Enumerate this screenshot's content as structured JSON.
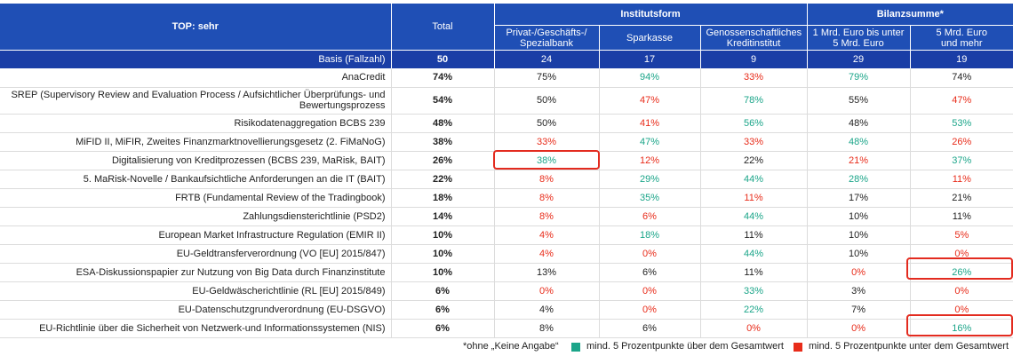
{
  "header": {
    "corner": "TOP: sehr",
    "total": "Total",
    "group1": "Institutsform",
    "group2": "Bilanzsumme*",
    "cols": [
      {
        "l1": "Privat-/Geschäfts-/",
        "l2": "Spezialbank"
      },
      {
        "l1": "Sparkasse",
        "l2": ""
      },
      {
        "l1": "Genossenschaftliches",
        "l2": "Kreditinstitut"
      },
      {
        "l1": "1 Mrd. Euro bis unter",
        "l2": "5 Mrd. Euro"
      },
      {
        "l1": "5 Mrd. Euro",
        "l2": "und mehr"
      }
    ]
  },
  "basis": {
    "label": "Basis (Fallzahl)",
    "values": [
      "50",
      "24",
      "17",
      "9",
      "29",
      "19"
    ]
  },
  "rows": [
    {
      "label": "AnaCredit",
      "cells": [
        {
          "v": "74%",
          "c": ""
        },
        {
          "v": "75%",
          "c": ""
        },
        {
          "v": "94%",
          "c": "pos"
        },
        {
          "v": "33%",
          "c": "neg"
        },
        {
          "v": "79%",
          "c": "pos"
        },
        {
          "v": "74%",
          "c": ""
        }
      ]
    },
    {
      "label": "SREP (Supervisory Review and Evaluation Process / Aufsichtlicher Überprüfungs- und Bewertungsprozess",
      "tall": true,
      "cells": [
        {
          "v": "54%",
          "c": ""
        },
        {
          "v": "50%",
          "c": ""
        },
        {
          "v": "47%",
          "c": "neg"
        },
        {
          "v": "78%",
          "c": "pos"
        },
        {
          "v": "55%",
          "c": ""
        },
        {
          "v": "47%",
          "c": "neg"
        }
      ]
    },
    {
      "label": "Risikodatenaggregation BCBS 239",
      "cells": [
        {
          "v": "48%",
          "c": ""
        },
        {
          "v": "50%",
          "c": ""
        },
        {
          "v": "41%",
          "c": "neg"
        },
        {
          "v": "56%",
          "c": "pos"
        },
        {
          "v": "48%",
          "c": ""
        },
        {
          "v": "53%",
          "c": "pos"
        }
      ]
    },
    {
      "label": "MiFID II, MiFIR, Zweites Finanzmarktnovellierungsgesetz (2. FiMaNoG)",
      "cells": [
        {
          "v": "38%",
          "c": ""
        },
        {
          "v": "33%",
          "c": "neg"
        },
        {
          "v": "47%",
          "c": "pos"
        },
        {
          "v": "33%",
          "c": "neg"
        },
        {
          "v": "48%",
          "c": "pos"
        },
        {
          "v": "26%",
          "c": "neg"
        }
      ]
    },
    {
      "label": "Digitalisierung von Kreditprozessen (BCBS 239, MaRisk, BAIT)",
      "cells": [
        {
          "v": "26%",
          "c": ""
        },
        {
          "v": "38%",
          "c": "pos"
        },
        {
          "v": "12%",
          "c": "neg"
        },
        {
          "v": "22%",
          "c": ""
        },
        {
          "v": "21%",
          "c": "neg"
        },
        {
          "v": "37%",
          "c": "pos"
        }
      ]
    },
    {
      "label": "5. MaRisk-Novelle / Bankaufsichtliche Anforderungen an die IT (BAIT)",
      "cells": [
        {
          "v": "22%",
          "c": ""
        },
        {
          "v": "8%",
          "c": "neg"
        },
        {
          "v": "29%",
          "c": "pos"
        },
        {
          "v": "44%",
          "c": "pos"
        },
        {
          "v": "28%",
          "c": "pos"
        },
        {
          "v": "11%",
          "c": "neg"
        }
      ]
    },
    {
      "label": "FRTB (Fundamental Review of the Tradingbook)",
      "cells": [
        {
          "v": "18%",
          "c": ""
        },
        {
          "v": "8%",
          "c": "neg"
        },
        {
          "v": "35%",
          "c": "pos"
        },
        {
          "v": "11%",
          "c": "neg"
        },
        {
          "v": "17%",
          "c": ""
        },
        {
          "v": "21%",
          "c": ""
        }
      ]
    },
    {
      "label": "Zahlungsdiensterichtlinie (PSD2)",
      "cells": [
        {
          "v": "14%",
          "c": ""
        },
        {
          "v": "8%",
          "c": "neg"
        },
        {
          "v": "6%",
          "c": "neg"
        },
        {
          "v": "44%",
          "c": "pos"
        },
        {
          "v": "10%",
          "c": ""
        },
        {
          "v": "11%",
          "c": ""
        }
      ]
    },
    {
      "label": "European Market Infrastructure Regulation (EMIR II)",
      "cells": [
        {
          "v": "10%",
          "c": ""
        },
        {
          "v": "4%",
          "c": "neg"
        },
        {
          "v": "18%",
          "c": "pos"
        },
        {
          "v": "11%",
          "c": ""
        },
        {
          "v": "10%",
          "c": ""
        },
        {
          "v": "5%",
          "c": "neg"
        }
      ]
    },
    {
      "label": "EU-Geldtransferverordnung (VO [EU] 2015/847)",
      "cells": [
        {
          "v": "10%",
          "c": ""
        },
        {
          "v": "4%",
          "c": "neg"
        },
        {
          "v": "0%",
          "c": "neg"
        },
        {
          "v": "44%",
          "c": "pos"
        },
        {
          "v": "10%",
          "c": ""
        },
        {
          "v": "0%",
          "c": "neg"
        }
      ]
    },
    {
      "label": "ESA-Diskussionspapier zur Nutzung von Big Data durch Finanzinstitute",
      "cells": [
        {
          "v": "10%",
          "c": ""
        },
        {
          "v": "13%",
          "c": ""
        },
        {
          "v": "6%",
          "c": ""
        },
        {
          "v": "11%",
          "c": ""
        },
        {
          "v": "0%",
          "c": "neg"
        },
        {
          "v": "26%",
          "c": "pos"
        }
      ]
    },
    {
      "label": "EU-Geldwäscherichtlinie (RL [EU] 2015/849)",
      "cells": [
        {
          "v": "6%",
          "c": ""
        },
        {
          "v": "0%",
          "c": "neg"
        },
        {
          "v": "0%",
          "c": "neg"
        },
        {
          "v": "33%",
          "c": "pos"
        },
        {
          "v": "3%",
          "c": ""
        },
        {
          "v": "0%",
          "c": "neg"
        }
      ]
    },
    {
      "label": "EU-Datenschutzgrundverordnung (EU-DSGVO)",
      "cells": [
        {
          "v": "6%",
          "c": ""
        },
        {
          "v": "4%",
          "c": ""
        },
        {
          "v": "0%",
          "c": "neg"
        },
        {
          "v": "22%",
          "c": "pos"
        },
        {
          "v": "7%",
          "c": ""
        },
        {
          "v": "0%",
          "c": "neg"
        }
      ]
    },
    {
      "label": "EU-Richtlinie über die Sicherheit von Netzwerk-und Informationssystemen (NIS)",
      "cells": [
        {
          "v": "6%",
          "c": ""
        },
        {
          "v": "8%",
          "c": ""
        },
        {
          "v": "6%",
          "c": ""
        },
        {
          "v": "0%",
          "c": "neg"
        },
        {
          "v": "0%",
          "c": "neg"
        },
        {
          "v": "16%",
          "c": "pos"
        }
      ]
    }
  ],
  "legend": {
    "note": "*ohne „Keine Angabe“",
    "pos_text": "mind. 5 Prozentpunkte über dem Gesamtwert",
    "neg_text": "mind. 5 Prozentpunkte unter dem Gesamtwert",
    "pos_color": "#1ba589",
    "neg_color": "#e82c1a"
  },
  "highlight_color": "#e32b1f"
}
